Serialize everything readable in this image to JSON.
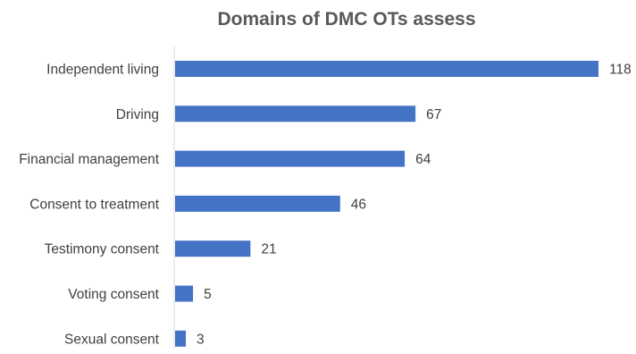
{
  "chart_data": {
    "type": "bar",
    "orientation": "horizontal",
    "title": "Domains of DMC OTs assess",
    "categories": [
      "Independent living",
      "Driving",
      "Financial management",
      "Consent to treatment",
      "Testimony consent",
      "Voting consent",
      "Sexual consent"
    ],
    "values": [
      118,
      67,
      64,
      46,
      21,
      5,
      3
    ],
    "xlim": [
      0,
      118
    ],
    "grid": false,
    "legend": "none",
    "bar_color": "#4472C4",
    "data_labels": true
  }
}
